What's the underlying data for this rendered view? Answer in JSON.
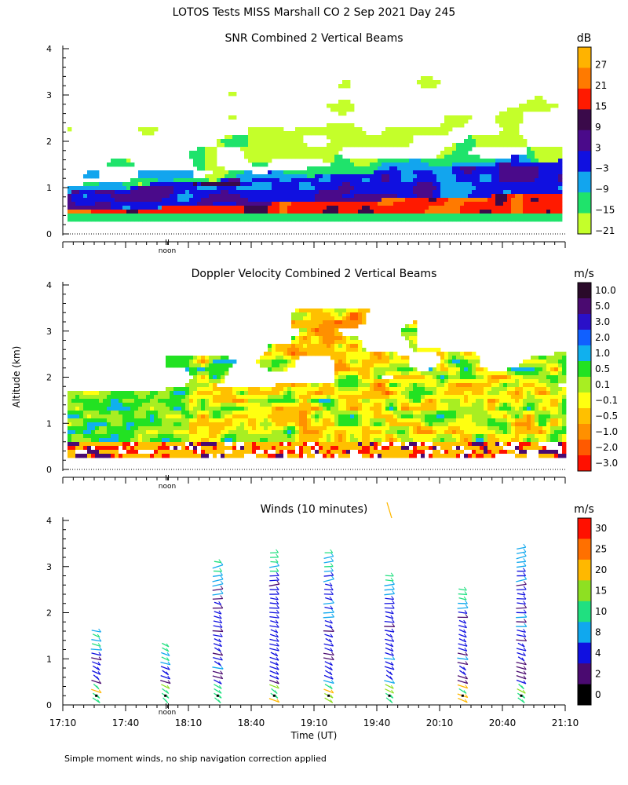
{
  "figure": {
    "title": "LOTOS Tests MISS Marshall CO   2 Sep 2021 Day 245",
    "ylabel": "Altitude (km)",
    "xlabel": "Time (UT)",
    "x_ticks": [
      "17:10",
      "17:40",
      "18:10",
      "18:40",
      "19:10",
      "19:40",
      "20:10",
      "20:40",
      "21:10"
    ],
    "noon_mark": "II",
    "noon_label": "noon",
    "footnote": "Simple moment winds, no ship navigation correction applied"
  },
  "chart_data": [
    {
      "type": "heatmap",
      "title": "SNR Combined 2 Vertical Beams",
      "ylabel": "Altitude (km)",
      "xlim": [
        "17:10",
        "21:10"
      ],
      "ylim": [
        0,
        4
      ],
      "yticks": [
        0,
        1,
        2,
        3,
        4
      ],
      "colorbar": {
        "unit": "dB",
        "labels": [
          "27",
          "21",
          "15",
          "9",
          "3",
          "−3",
          "−9",
          "−15",
          "−21"
        ],
        "colors": [
          "#ffb300",
          "#ff7a00",
          "#ff1a00",
          "#3a0a4a",
          "#4a0a8a",
          "#1010e0",
          "#12a5ee",
          "#1fe36b",
          "#c4ff2a"
        ]
      }
    },
    {
      "type": "heatmap",
      "title": "Doppler Velocity Combined 2 Vertical Beams",
      "ylabel": "Altitude (km)",
      "xlim": [
        "17:10",
        "21:10"
      ],
      "ylim": [
        0,
        4
      ],
      "yticks": [
        0,
        1,
        2,
        3,
        4
      ],
      "colorbar": {
        "unit": "m/s",
        "labels": [
          "10.0",
          "5.0",
          "3.0",
          "2.0",
          "1.0",
          "0.5",
          "0.1",
          "−0.1",
          "−0.5",
          "−1.0",
          "−2.0",
          "−3.0"
        ],
        "colors": [
          "#2a0a2a",
          "#4a0a70",
          "#2a10c8",
          "#1060ff",
          "#10b0ee",
          "#22e222",
          "#a8ee22",
          "#ffff10",
          "#ffc000",
          "#ff9000",
          "#ff5a00",
          "#ff1000"
        ]
      }
    },
    {
      "type": "wind_barbs",
      "title": "Winds (10 minutes)",
      "xlabel": "Time (UT)",
      "ylim": [
        0,
        4
      ],
      "yticks": [
        0,
        1,
        2,
        3,
        4
      ],
      "profile_times": [
        "17:26",
        "17:59",
        "18:24",
        "18:51",
        "19:17",
        "19:46",
        "20:21",
        "20:49"
      ],
      "profile_tops_km": [
        1.7,
        1.3,
        3.2,
        3.4,
        3.4,
        2.9,
        2.6,
        3.5
      ],
      "colorbar": {
        "unit": "m/s",
        "labels": [
          "30",
          "25",
          "20",
          "15",
          "10",
          "8",
          "4",
          "2",
          "0"
        ],
        "colors": [
          "#ff1000",
          "#ff7000",
          "#ffb800",
          "#8ee022",
          "#20e080",
          "#10a8ee",
          "#1010e0",
          "#4a0a70",
          "#000000"
        ]
      }
    }
  ]
}
